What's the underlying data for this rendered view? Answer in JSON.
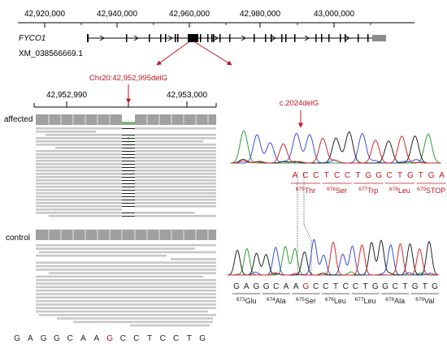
{
  "genome_axis": {
    "ticks": [
      "42,920,000",
      "42,940,000",
      "42,960,000",
      "42,980,000",
      "43,000,000"
    ]
  },
  "gene": {
    "name": "FYCO1",
    "transcript": "XM_038566669.1"
  },
  "variant": {
    "genomic": "Chr20:42,952,995delG",
    "cdna": "c.2024delG"
  },
  "zoom_axis": {
    "ticks": [
      "42,952,990",
      "42,953,000"
    ]
  },
  "tracks": {
    "affected": "affected",
    "control": "control"
  },
  "igv_reference_sequence": [
    "G",
    "A",
    "G",
    "G",
    "C",
    "A",
    "A",
    "G",
    "C",
    "C",
    "T",
    "C",
    "C",
    "T",
    "G"
  ],
  "affected_sequence": {
    "bases": [
      "A",
      "C",
      "C",
      "T",
      "C",
      "C",
      "T",
      "G",
      "G",
      "C",
      "T",
      "G",
      "T",
      "G",
      "A"
    ],
    "codons": [
      {
        "num": "675",
        "aa": "Thr"
      },
      {
        "num": "676",
        "aa": "Ser"
      },
      {
        "num": "677",
        "aa": "Trp"
      },
      {
        "num": "678",
        "aa": "Leu"
      },
      {
        "num": "679",
        "aa": "STOP"
      }
    ]
  },
  "control_sequence": {
    "bases": [
      "G",
      "A",
      "G",
      "G",
      "C",
      "A",
      "A",
      "G",
      "C",
      "C",
      "T",
      "C",
      "C",
      "T",
      "G",
      "G",
      "C",
      "T",
      "G",
      "T",
      "G"
    ],
    "codons": [
      {
        "num": "673",
        "aa": "Glu"
      },
      {
        "num": "674",
        "aa": "Ala"
      },
      {
        "num": "675",
        "aa": "Ser"
      },
      {
        "num": "676",
        "aa": "Leu"
      },
      {
        "num": "677",
        "aa": "Leu"
      },
      {
        "num": "678",
        "aa": "Ala"
      },
      {
        "num": "679",
        "aa": "Val"
      }
    ]
  },
  "colors": {
    "accent": "#c0141c",
    "read": "#c8c8c8",
    "coverage": "#a0a0a0",
    "trace_A": "#2e9e3c",
    "trace_C": "#3a4fd8",
    "trace_G": "#222222",
    "trace_T": "#d22a2a"
  }
}
